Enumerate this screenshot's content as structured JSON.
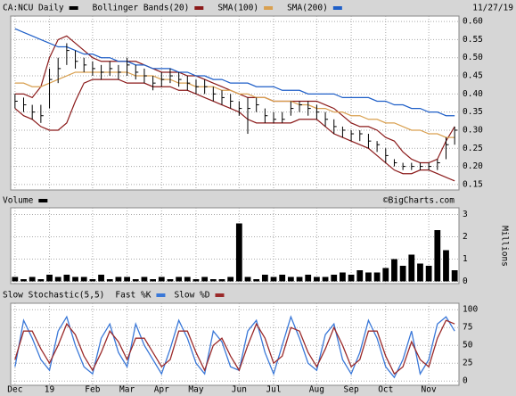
{
  "chart_data": [
    {
      "type": "ohlc",
      "name": "CA:NCU Daily",
      "color": "#000000",
      "date_label": "11/27/19",
      "high": [
        0.4,
        0.39,
        0.37,
        0.37,
        0.47,
        0.5,
        0.54,
        0.52,
        0.5,
        0.49,
        0.48,
        0.49,
        0.48,
        0.5,
        0.48,
        0.47,
        0.45,
        0.46,
        0.47,
        0.46,
        0.45,
        0.44,
        0.44,
        0.42,
        0.41,
        0.4,
        0.38,
        0.39,
        0.39,
        0.36,
        0.35,
        0.35,
        0.38,
        0.38,
        0.38,
        0.37,
        0.35,
        0.33,
        0.31,
        0.3,
        0.3,
        0.29,
        0.27,
        0.25,
        0.22,
        0.21,
        0.21,
        0.21,
        0.21,
        0.22,
        0.28,
        0.31
      ],
      "low": [
        0.36,
        0.35,
        0.33,
        0.32,
        0.36,
        0.43,
        0.48,
        0.47,
        0.46,
        0.45,
        0.44,
        0.45,
        0.44,
        0.45,
        0.44,
        0.43,
        0.41,
        0.42,
        0.43,
        0.42,
        0.41,
        0.4,
        0.4,
        0.38,
        0.37,
        0.36,
        0.34,
        0.29,
        0.35,
        0.32,
        0.32,
        0.32,
        0.34,
        0.35,
        0.34,
        0.33,
        0.31,
        0.29,
        0.28,
        0.27,
        0.27,
        0.25,
        0.24,
        0.21,
        0.2,
        0.19,
        0.19,
        0.19,
        0.19,
        0.19,
        0.22,
        0.26
      ],
      "close": [
        0.38,
        0.37,
        0.35,
        0.34,
        0.44,
        0.47,
        0.52,
        0.49,
        0.48,
        0.47,
        0.46,
        0.47,
        0.46,
        0.48,
        0.46,
        0.45,
        0.43,
        0.44,
        0.45,
        0.44,
        0.43,
        0.42,
        0.42,
        0.4,
        0.39,
        0.38,
        0.36,
        0.36,
        0.37,
        0.34,
        0.33,
        0.33,
        0.36,
        0.37,
        0.36,
        0.35,
        0.33,
        0.31,
        0.3,
        0.29,
        0.29,
        0.27,
        0.26,
        0.23,
        0.21,
        0.2,
        0.2,
        0.2,
        0.2,
        0.21,
        0.26,
        0.3
      ],
      "bands": {
        "name": "Bollinger Bands(20)",
        "color": "#8b1a1a",
        "upper": [
          0.4,
          0.4,
          0.39,
          0.42,
          0.5,
          0.55,
          0.56,
          0.54,
          0.52,
          0.5,
          0.49,
          0.49,
          0.49,
          0.49,
          0.49,
          0.48,
          0.47,
          0.46,
          0.46,
          0.46,
          0.45,
          0.45,
          0.44,
          0.43,
          0.42,
          0.41,
          0.4,
          0.39,
          0.39,
          0.39,
          0.38,
          0.38,
          0.38,
          0.38,
          0.38,
          0.38,
          0.37,
          0.36,
          0.34,
          0.32,
          0.31,
          0.31,
          0.3,
          0.28,
          0.27,
          0.24,
          0.22,
          0.21,
          0.21,
          0.22,
          0.27,
          0.31
        ],
        "lower": [
          0.36,
          0.34,
          0.33,
          0.31,
          0.3,
          0.3,
          0.32,
          0.38,
          0.43,
          0.44,
          0.44,
          0.44,
          0.44,
          0.43,
          0.43,
          0.43,
          0.42,
          0.42,
          0.42,
          0.41,
          0.41,
          0.4,
          0.39,
          0.38,
          0.37,
          0.36,
          0.35,
          0.33,
          0.32,
          0.32,
          0.32,
          0.32,
          0.32,
          0.33,
          0.33,
          0.33,
          0.31,
          0.29,
          0.28,
          0.27,
          0.26,
          0.25,
          0.23,
          0.21,
          0.19,
          0.18,
          0.18,
          0.19,
          0.19,
          0.18,
          0.17,
          0.16
        ]
      },
      "series": [
        {
          "name": "SMA(100)",
          "color": "#d9a050",
          "values": [
            0.43,
            0.43,
            0.42,
            0.42,
            0.43,
            0.44,
            0.45,
            0.46,
            0.46,
            0.46,
            0.46,
            0.46,
            0.46,
            0.46,
            0.45,
            0.45,
            0.45,
            0.44,
            0.44,
            0.43,
            0.43,
            0.42,
            0.42,
            0.42,
            0.41,
            0.41,
            0.4,
            0.4,
            0.39,
            0.39,
            0.38,
            0.38,
            0.38,
            0.37,
            0.37,
            0.36,
            0.36,
            0.35,
            0.35,
            0.34,
            0.34,
            0.33,
            0.33,
            0.32,
            0.32,
            0.31,
            0.3,
            0.3,
            0.29,
            0.29,
            0.28,
            0.28
          ]
        },
        {
          "name": "SMA(200)",
          "color": "#1f5fc8",
          "values": [
            0.58,
            0.57,
            0.56,
            0.55,
            0.54,
            0.53,
            0.53,
            0.52,
            0.51,
            0.51,
            0.5,
            0.5,
            0.49,
            0.49,
            0.48,
            0.48,
            0.47,
            0.47,
            0.47,
            0.46,
            0.46,
            0.45,
            0.45,
            0.44,
            0.44,
            0.43,
            0.43,
            0.43,
            0.42,
            0.42,
            0.42,
            0.41,
            0.41,
            0.41,
            0.4,
            0.4,
            0.4,
            0.4,
            0.39,
            0.39,
            0.39,
            0.39,
            0.38,
            0.38,
            0.37,
            0.37,
            0.36,
            0.36,
            0.35,
            0.35,
            0.34,
            0.34
          ]
        }
      ],
      "ylim": [
        0.135,
        0.615
      ],
      "yticks": [
        {
          "value": 0.6,
          "label": "0.60"
        },
        0.55,
        {
          "value": 0.5,
          "label": "0.50"
        },
        0.45,
        {
          "value": 0.4,
          "label": "0.40"
        },
        0.35,
        {
          "value": 0.3,
          "label": "0.30"
        },
        0.25,
        {
          "value": 0.2,
          "label": "0.20"
        },
        0.15
      ],
      "grid": true
    },
    {
      "type": "bar",
      "name": "Volume",
      "color": "#000000",
      "ylabel": "Millions",
      "credit": "©BigCharts.com",
      "values": [
        0.2,
        0.1,
        0.2,
        0.1,
        0.3,
        0.2,
        0.3,
        0.2,
        0.2,
        0.1,
        0.3,
        0.1,
        0.2,
        0.2,
        0.1,
        0.2,
        0.1,
        0.2,
        0.1,
        0.2,
        0.2,
        0.1,
        0.2,
        0.1,
        0.1,
        0.2,
        2.6,
        0.2,
        0.1,
        0.3,
        0.2,
        0.3,
        0.2,
        0.2,
        0.3,
        0.2,
        0.2,
        0.3,
        0.4,
        0.3,
        0.5,
        0.4,
        0.4,
        0.6,
        1.0,
        0.7,
        1.2,
        0.8,
        0.7,
        2.3,
        1.4,
        0.5
      ],
      "ylim": [
        -0.1,
        3.3
      ],
      "yticks": [
        0,
        1,
        2,
        3
      ],
      "grid": true
    },
    {
      "type": "line",
      "title": "Slow Stochastic(5,5)",
      "categories": [
        "Dec",
        null,
        null,
        null,
        "19",
        null,
        null,
        null,
        null,
        "Feb",
        null,
        null,
        null,
        "Mar",
        null,
        null,
        null,
        "Apr",
        null,
        null,
        null,
        "May",
        null,
        null,
        null,
        null,
        "Jun",
        null,
        null,
        null,
        "Jul",
        null,
        null,
        null,
        null,
        "Aug",
        null,
        null,
        null,
        "Sep",
        null,
        null,
        null,
        "Oct",
        null,
        null,
        null,
        null,
        "Nov",
        null,
        null,
        null
      ],
      "series": [
        {
          "name": "Fast %K",
          "color": "#3a78d8",
          "values": [
            20,
            85,
            60,
            30,
            15,
            70,
            90,
            50,
            20,
            10,
            60,
            80,
            40,
            20,
            80,
            50,
            30,
            10,
            45,
            85,
            60,
            25,
            10,
            70,
            55,
            20,
            15,
            70,
            85,
            40,
            10,
            50,
            90,
            60,
            25,
            15,
            65,
            80,
            30,
            10,
            40,
            85,
            60,
            20,
            5,
            30,
            70,
            10,
            30,
            80,
            90,
            70
          ]
        },
        {
          "name": "Slow %D",
          "color": "#9b2a2a",
          "values": [
            30,
            70,
            70,
            45,
            25,
            50,
            80,
            65,
            35,
            15,
            40,
            70,
            55,
            30,
            60,
            60,
            40,
            20,
            30,
            70,
            70,
            40,
            15,
            50,
            60,
            35,
            15,
            50,
            80,
            60,
            25,
            35,
            75,
            70,
            40,
            20,
            45,
            75,
            50,
            20,
            30,
            70,
            70,
            35,
            10,
            20,
            55,
            30,
            20,
            60,
            85,
            80
          ]
        }
      ],
      "ylim": [
        -6,
        109
      ],
      "yticks": [
        0,
        25,
        50,
        75,
        100
      ],
      "grid": true
    }
  ]
}
